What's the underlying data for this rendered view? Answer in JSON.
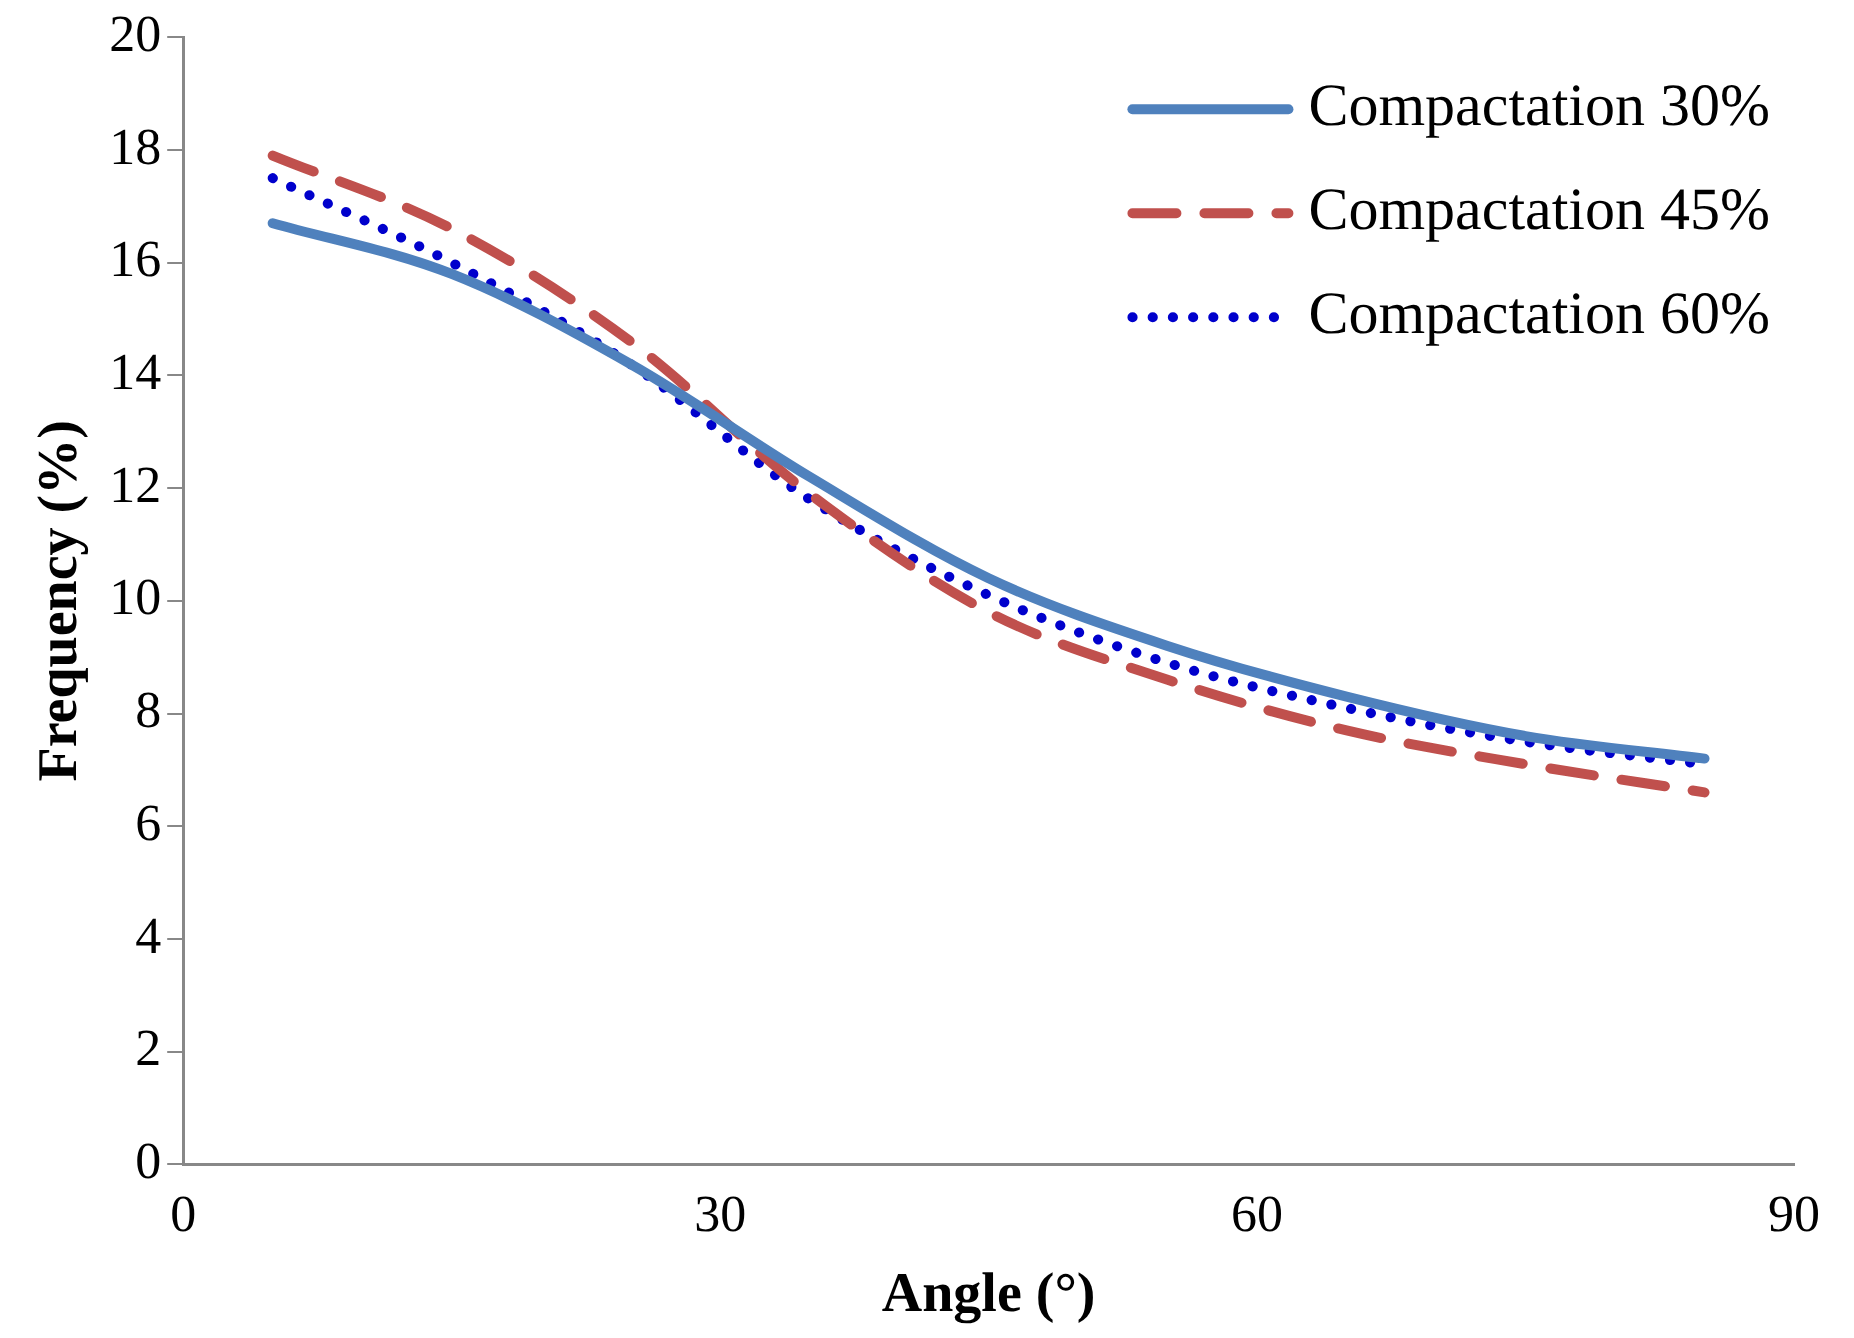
{
  "chart_data": {
    "type": "line",
    "xlabel": "Angle (°)",
    "ylabel": "Frequency (%)",
    "x": [
      5,
      15,
      25,
      35,
      45,
      55,
      65,
      75,
      85
    ],
    "series": [
      {
        "name": "Compactation 30%",
        "color": "#4f81bd",
        "line_style": "solid",
        "values": [
          16.7,
          15.8,
          14.2,
          12.2,
          10.4,
          9.2,
          8.3,
          7.6,
          7.2
        ]
      },
      {
        "name": "Compactation 45%",
        "color": "#c0504d",
        "line_style": "dashed",
        "values": [
          17.9,
          16.6,
          14.6,
          11.9,
          9.8,
          8.6,
          7.7,
          7.1,
          6.6
        ]
      },
      {
        "name": "Compactation 60%",
        "color": "#0000cc",
        "line_style": "dotted",
        "values": [
          17.5,
          16.0,
          14.2,
          11.8,
          10.1,
          8.9,
          8.1,
          7.5,
          7.1
        ]
      }
    ],
    "xlim": [
      0,
      90
    ],
    "xticks": [
      0,
      30,
      60,
      90
    ],
    "ylim": [
      0,
      20
    ],
    "yticks": [
      0,
      2,
      4,
      6,
      8,
      10,
      12,
      14,
      16,
      18,
      20
    ],
    "grid": false,
    "legend": "top right",
    "marker": "none"
  }
}
